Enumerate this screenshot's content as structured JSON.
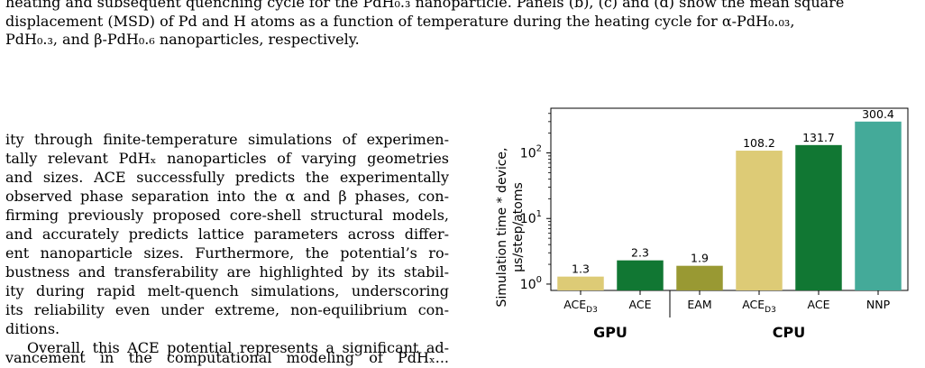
{
  "caption": {
    "line0": "heating and subsequent quenching cycle for the PdH₀.₃ nanoparticle. Panels (b), (c) and (d) show the mean square",
    "line1": "displacement (MSD) of Pd and H atoms as a function of temperature during the heating cycle for α-PdH₀.₀₃,",
    "line2": "PdH₀.₃, and β-PdH₀.₆ nanoparticles, respectively."
  },
  "body": {
    "lines": [
      "ity through finite-temperature simulations of experimen-",
      "tally relevant PdHₓ nanoparticles of varying geometries",
      "and sizes. ACE successfully predicts the experimentally",
      "observed phase separation into the α and β phases, con-",
      "firming previously proposed core-shell structural models,",
      "and accurately predicts lattice parameters across differ-",
      "ent nanoparticle sizes. Furthermore, the potential’s ro-",
      "bustness and transferability are highlighted by its stabil-",
      "ity during rapid melt-quench simulations, underscoring",
      "its reliability even under extreme, non-equilibrium con-",
      "ditions."
    ],
    "para2": "Overall, this ACE potential represents a significant ad-",
    "cutoff": "vancement in the computational modeling of PdHₓ..."
  },
  "chart_data": {
    "type": "bar",
    "ylabel_line1": "Simulation time * device,",
    "ylabel_line2": "μs/step/atoms",
    "yscale": "log",
    "ylim": [
      0.8,
      480
    ],
    "yticks": [
      {
        "base": "10",
        "exp": "0"
      },
      {
        "base": "10",
        "exp": "1"
      },
      {
        "base": "10",
        "exp": "2"
      }
    ],
    "groups": [
      "GPU",
      "CPU"
    ],
    "categories": [
      {
        "name": "ACE",
        "sub": "D3",
        "group": "GPU",
        "value": 1.3,
        "label": "1.3",
        "color": "#DDCB76"
      },
      {
        "name": "ACE",
        "sub": "",
        "group": "GPU",
        "value": 2.3,
        "label": "2.3",
        "color": "#117733"
      },
      {
        "name": "EAM",
        "sub": "",
        "group": "CPU",
        "value": 1.9,
        "label": "1.9",
        "color": "#999933"
      },
      {
        "name": "ACE",
        "sub": "D3",
        "group": "CPU",
        "value": 108.2,
        "label": "108.2",
        "color": "#DDCB76"
      },
      {
        "name": "ACE",
        "sub": "",
        "group": "CPU",
        "value": 131.7,
        "label": "131.7",
        "color": "#117733"
      },
      {
        "name": "NNP",
        "sub": "",
        "group": "CPU",
        "value": 300.4,
        "label": "300.4",
        "color": "#44AA99"
      }
    ]
  }
}
